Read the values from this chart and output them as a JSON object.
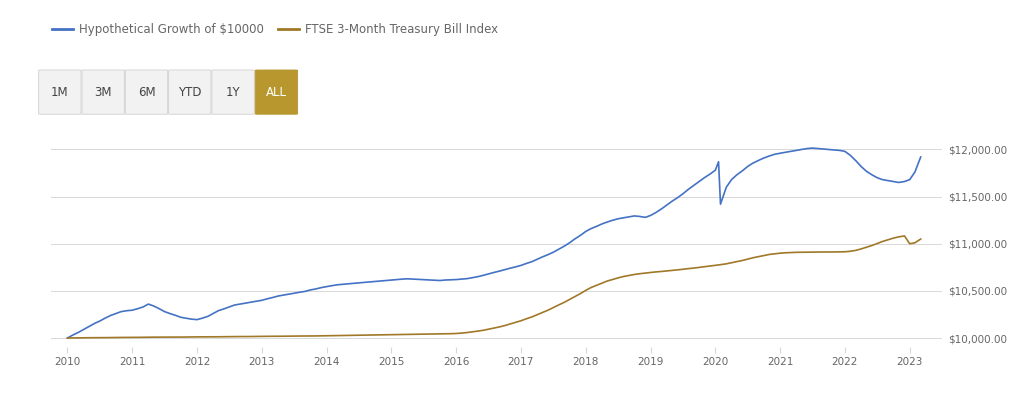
{
  "blue_line_label": "Hypothetical Growth of $10000",
  "gold_line_label": "FTSE 3-Month Treasury Bill Index",
  "blue_color": "#4472C4",
  "gold_color": "#A07828",
  "bg_color": "#ffffff",
  "grid_color": "#d8d8d8",
  "axis_label_color": "#666666",
  "ylim": [
    9900,
    12300
  ],
  "yticks": [
    10000,
    10500,
    11000,
    11500,
    12000
  ],
  "ytick_labels": [
    "$10,000.00",
    "$10,500.00",
    "$11,000.00",
    "$11,500.00",
    "$12,000.00"
  ],
  "xticks": [
    2010,
    2011,
    2012,
    2013,
    2014,
    2015,
    2016,
    2017,
    2018,
    2019,
    2020,
    2021,
    2022,
    2023
  ],
  "button_labels": [
    "1M",
    "3M",
    "6M",
    "YTD",
    "1Y",
    "ALL"
  ],
  "button_active": "ALL",
  "button_active_color": "#B8972E",
  "button_inactive_color": "#f2f2f2",
  "button_text_active_color": "#ffffff",
  "button_text_inactive_color": "#444444",
  "blue_x": [
    2010.0,
    2010.08,
    2010.17,
    2010.25,
    2010.33,
    2010.42,
    2010.5,
    2010.58,
    2010.67,
    2010.75,
    2010.83,
    2010.92,
    2011.0,
    2011.08,
    2011.17,
    2011.25,
    2011.33,
    2011.42,
    2011.5,
    2011.58,
    2011.67,
    2011.75,
    2011.83,
    2011.92,
    2012.0,
    2012.08,
    2012.17,
    2012.25,
    2012.33,
    2012.42,
    2012.5,
    2012.58,
    2012.67,
    2012.75,
    2012.83,
    2012.92,
    2013.0,
    2013.08,
    2013.17,
    2013.25,
    2013.33,
    2013.42,
    2013.5,
    2013.58,
    2013.67,
    2013.75,
    2013.83,
    2013.92,
    2014.0,
    2014.08,
    2014.17,
    2014.25,
    2014.33,
    2014.42,
    2014.5,
    2014.58,
    2014.67,
    2014.75,
    2014.83,
    2014.92,
    2015.0,
    2015.08,
    2015.17,
    2015.25,
    2015.33,
    2015.42,
    2015.5,
    2015.58,
    2015.67,
    2015.75,
    2015.83,
    2015.92,
    2016.0,
    2016.08,
    2016.17,
    2016.25,
    2016.33,
    2016.42,
    2016.5,
    2016.58,
    2016.67,
    2016.75,
    2016.83,
    2016.92,
    2017.0,
    2017.08,
    2017.17,
    2017.25,
    2017.33,
    2017.42,
    2017.5,
    2017.58,
    2017.67,
    2017.75,
    2017.83,
    2017.92,
    2018.0,
    2018.08,
    2018.17,
    2018.25,
    2018.33,
    2018.42,
    2018.5,
    2018.58,
    2018.67,
    2018.75,
    2018.83,
    2018.92,
    2019.0,
    2019.08,
    2019.17,
    2019.25,
    2019.33,
    2019.42,
    2019.5,
    2019.58,
    2019.67,
    2019.75,
    2019.83,
    2019.92,
    2020.0,
    2020.05,
    2020.08,
    2020.17,
    2020.25,
    2020.33,
    2020.42,
    2020.5,
    2020.58,
    2020.67,
    2020.75,
    2020.83,
    2020.92,
    2021.0,
    2021.08,
    2021.17,
    2021.25,
    2021.33,
    2021.42,
    2021.5,
    2021.58,
    2021.67,
    2021.75,
    2021.83,
    2021.92,
    2022.0,
    2022.08,
    2022.17,
    2022.25,
    2022.33,
    2022.42,
    2022.5,
    2022.58,
    2022.67,
    2022.75,
    2022.83,
    2022.92,
    2023.0,
    2023.08,
    2023.17
  ],
  "blue_y": [
    10000,
    10030,
    10060,
    10090,
    10120,
    10155,
    10180,
    10210,
    10240,
    10260,
    10280,
    10290,
    10295,
    10310,
    10330,
    10360,
    10340,
    10310,
    10280,
    10260,
    10240,
    10220,
    10210,
    10200,
    10195,
    10210,
    10230,
    10260,
    10290,
    10310,
    10330,
    10350,
    10360,
    10370,
    10380,
    10390,
    10400,
    10415,
    10430,
    10445,
    10455,
    10465,
    10475,
    10485,
    10495,
    10510,
    10520,
    10535,
    10545,
    10555,
    10565,
    10570,
    10575,
    10580,
    10585,
    10590,
    10595,
    10600,
    10605,
    10610,
    10615,
    10620,
    10625,
    10628,
    10625,
    10622,
    10618,
    10615,
    10612,
    10610,
    10615,
    10618,
    10620,
    10625,
    10630,
    10640,
    10650,
    10665,
    10680,
    10695,
    10710,
    10725,
    10740,
    10755,
    10770,
    10790,
    10810,
    10835,
    10860,
    10885,
    10910,
    10940,
    10975,
    11010,
    11050,
    11090,
    11130,
    11160,
    11185,
    11210,
    11230,
    11250,
    11265,
    11275,
    11285,
    11295,
    11290,
    11280,
    11300,
    11330,
    11370,
    11410,
    11450,
    11490,
    11530,
    11575,
    11620,
    11660,
    11700,
    11740,
    11780,
    11870,
    11420,
    11600,
    11680,
    11730,
    11775,
    11820,
    11855,
    11885,
    11910,
    11930,
    11950,
    11960,
    11970,
    11980,
    11990,
    12000,
    12010,
    12015,
    12010,
    12005,
    12000,
    11995,
    11990,
    11980,
    11940,
    11880,
    11820,
    11770,
    11730,
    11700,
    11680,
    11670,
    11660,
    11650,
    11660,
    11680,
    11760,
    11920
  ],
  "gold_x": [
    2010.0,
    2010.08,
    2010.17,
    2010.25,
    2010.33,
    2010.42,
    2010.5,
    2010.58,
    2010.67,
    2010.75,
    2010.83,
    2010.92,
    2011.0,
    2011.08,
    2011.17,
    2011.25,
    2011.33,
    2011.42,
    2011.5,
    2011.58,
    2011.67,
    2011.75,
    2011.83,
    2011.92,
    2012.0,
    2012.08,
    2012.17,
    2012.25,
    2012.33,
    2012.42,
    2012.5,
    2012.58,
    2012.67,
    2012.75,
    2012.83,
    2012.92,
    2013.0,
    2013.08,
    2013.17,
    2013.25,
    2013.33,
    2013.42,
    2013.5,
    2013.58,
    2013.67,
    2013.75,
    2013.83,
    2013.92,
    2014.0,
    2014.08,
    2014.17,
    2014.25,
    2014.33,
    2014.42,
    2014.5,
    2014.58,
    2014.67,
    2014.75,
    2014.83,
    2014.92,
    2015.0,
    2015.08,
    2015.17,
    2015.25,
    2015.33,
    2015.42,
    2015.5,
    2015.58,
    2015.67,
    2015.75,
    2015.83,
    2015.92,
    2016.0,
    2016.08,
    2016.17,
    2016.25,
    2016.33,
    2016.42,
    2016.5,
    2016.58,
    2016.67,
    2016.75,
    2016.83,
    2016.92,
    2017.0,
    2017.08,
    2017.17,
    2017.25,
    2017.33,
    2017.42,
    2017.5,
    2017.58,
    2017.67,
    2017.75,
    2017.83,
    2017.92,
    2018.0,
    2018.08,
    2018.17,
    2018.25,
    2018.33,
    2018.42,
    2018.5,
    2018.58,
    2018.67,
    2018.75,
    2018.83,
    2018.92,
    2019.0,
    2019.08,
    2019.17,
    2019.25,
    2019.33,
    2019.42,
    2019.5,
    2019.58,
    2019.67,
    2019.75,
    2019.83,
    2019.92,
    2020.0,
    2020.08,
    2020.17,
    2020.25,
    2020.33,
    2020.42,
    2020.5,
    2020.58,
    2020.67,
    2020.75,
    2020.83,
    2020.92,
    2021.0,
    2021.08,
    2021.17,
    2021.25,
    2021.33,
    2021.42,
    2021.5,
    2021.58,
    2021.67,
    2021.75,
    2021.83,
    2021.92,
    2022.0,
    2022.08,
    2022.17,
    2022.25,
    2022.33,
    2022.42,
    2022.5,
    2022.58,
    2022.67,
    2022.75,
    2022.83,
    2022.92,
    2023.0,
    2023.08,
    2023.17
  ],
  "gold_y": [
    10000,
    10001,
    10002,
    10002,
    10003,
    10003,
    10004,
    10004,
    10005,
    10005,
    10006,
    10006,
    10007,
    10007,
    10008,
    10008,
    10009,
    10009,
    10009,
    10010,
    10010,
    10010,
    10011,
    10011,
    10012,
    10012,
    10013,
    10013,
    10013,
    10014,
    10014,
    10015,
    10015,
    10016,
    10016,
    10017,
    10017,
    10018,
    10018,
    10019,
    10019,
    10020,
    10020,
    10021,
    10021,
    10022,
    10022,
    10023,
    10023,
    10024,
    10025,
    10026,
    10027,
    10028,
    10029,
    10030,
    10031,
    10032,
    10033,
    10034,
    10035,
    10036,
    10037,
    10038,
    10039,
    10040,
    10041,
    10042,
    10043,
    10044,
    10045,
    10046,
    10048,
    10052,
    10058,
    10065,
    10073,
    10082,
    10093,
    10105,
    10118,
    10132,
    10148,
    10165,
    10183,
    10203,
    10224,
    10247,
    10271,
    10296,
    10323,
    10350,
    10379,
    10409,
    10440,
    10472,
    10505,
    10535,
    10560,
    10583,
    10604,
    10622,
    10638,
    10652,
    10664,
    10674,
    10682,
    10689,
    10695,
    10701,
    10706,
    10712,
    10717,
    10723,
    10729,
    10736,
    10742,
    10749,
    10756,
    10763,
    10770,
    10778,
    10787,
    10798,
    10810,
    10823,
    10837,
    10851,
    10864,
    10876,
    10886,
    10894,
    10900,
    10904,
    10907,
    10909,
    10910,
    10911,
    10912,
    10912,
    10912,
    10913,
    10913,
    10914,
    10915,
    10920,
    10930,
    10945,
    10962,
    10982,
    11003,
    11024,
    11043,
    11060,
    11073,
    11083,
    11000,
    11010,
    11050
  ]
}
